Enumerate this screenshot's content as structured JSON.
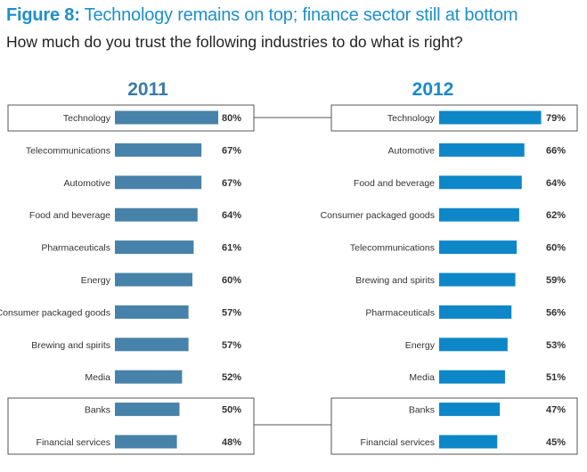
{
  "header": {
    "title_lead": "Figure 8:",
    "title_rest": "Technology remains on top; finance sector still at bottom",
    "subtitle": "How much do you trust the following industries to do what is right?"
  },
  "colors": {
    "title": "#1f8fc9",
    "bar_2011": "#4682a9",
    "bar_2012": "#0d87c8",
    "year_2011": "#3b7aa5",
    "year_2012": "#1a8bc9",
    "highlight_box": "#555555"
  },
  "chart_data": [
    {
      "type": "bar",
      "orientation": "horizontal",
      "title": "2011",
      "categories": [
        "Technology",
        "Telecommunications",
        "Automotive",
        "Food and beverage",
        "Pharmaceuticals",
        "Energy",
        "Consumer packaged goods",
        "Brewing and spirits",
        "Media",
        "Banks",
        "Financial services"
      ],
      "values": [
        80,
        67,
        67,
        64,
        61,
        60,
        57,
        57,
        52,
        50,
        48
      ],
      "labels": [
        "80%",
        "67%",
        "67%",
        "64%",
        "61%",
        "60%",
        "57%",
        "57%",
        "52%",
        "50%",
        "48%"
      ],
      "highlighted": [
        "Technology",
        "Banks",
        "Financial services"
      ],
      "xlim": [
        0,
        80
      ]
    },
    {
      "type": "bar",
      "orientation": "horizontal",
      "title": "2012",
      "categories": [
        "Technology",
        "Automotive",
        "Food and beverage",
        "Consumer packaged goods",
        "Telecommunications",
        "Brewing and spirits",
        "Pharmaceuticals",
        "Energy",
        "Media",
        "Banks",
        "Financial services"
      ],
      "values": [
        79,
        66,
        64,
        62,
        60,
        59,
        56,
        53,
        51,
        47,
        45
      ],
      "labels": [
        "79%",
        "66%",
        "64%",
        "62%",
        "60%",
        "59%",
        "56%",
        "53%",
        "51%",
        "47%",
        "45%"
      ],
      "highlighted": [
        "Technology",
        "Banks",
        "Financial services"
      ],
      "xlim": [
        0,
        80
      ]
    }
  ]
}
